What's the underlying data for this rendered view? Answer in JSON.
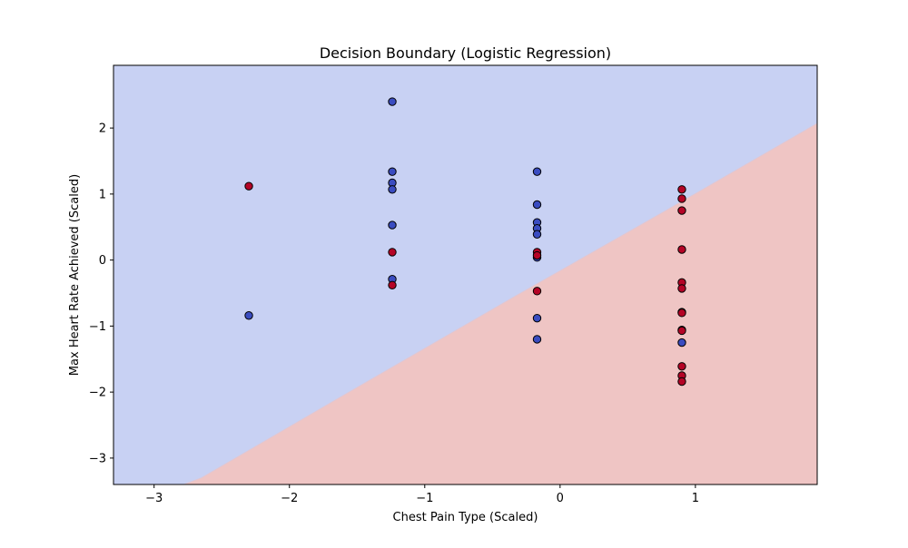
{
  "chart_data": {
    "type": "scatter",
    "title": "Decision Boundary (Logistic Regression)",
    "xlabel": "Chest Pain Type (Scaled)",
    "ylabel": "Max Heart Rate Achieved (Scaled)",
    "xlim": [
      -3.3,
      1.9
    ],
    "ylim": [
      -3.4,
      2.95
    ],
    "xticks": [
      -3,
      -2,
      -1,
      0,
      1
    ],
    "yticks": [
      -3,
      -2,
      -1,
      0,
      1,
      2
    ],
    "xtick_labels": [
      "−3",
      "−2",
      "−1",
      "0",
      "1"
    ],
    "ytick_labels": [
      "−3",
      "−2",
      "−1",
      "0",
      "1",
      "2"
    ],
    "grid": false,
    "legend": "none",
    "regions": [
      {
        "class": 0,
        "color": "#c8d1f3"
      },
      {
        "class": 1,
        "color": "#efc5c4"
      }
    ],
    "boundary": [
      {
        "x": -3.3,
        "y": -3.8
      },
      {
        "x": -2.65,
        "y": -3.3
      },
      {
        "x": -1.5,
        "y": -1.93
      },
      {
        "x": -0.35,
        "y": -0.57
      },
      {
        "x": 0.8,
        "y": 0.77
      },
      {
        "x": 1.9,
        "y": 2.07
      }
    ],
    "series": [
      {
        "class": 0,
        "color": "#3a4cc0",
        "points": [
          {
            "x": -2.3,
            "y": -0.84
          },
          {
            "x": -1.24,
            "y": 2.4
          },
          {
            "x": -1.24,
            "y": 1.34
          },
          {
            "x": -1.24,
            "y": 1.17
          },
          {
            "x": -1.24,
            "y": 1.07
          },
          {
            "x": -1.24,
            "y": 0.53
          },
          {
            "x": -1.24,
            "y": -0.29
          },
          {
            "x": -0.17,
            "y": 1.34
          },
          {
            "x": -0.17,
            "y": 0.84
          },
          {
            "x": -0.17,
            "y": 0.57
          },
          {
            "x": -0.17,
            "y": 0.48
          },
          {
            "x": -0.17,
            "y": 0.39
          },
          {
            "x": -0.17,
            "y": 0.04
          },
          {
            "x": -0.17,
            "y": -0.88
          },
          {
            "x": -0.17,
            "y": -1.2
          },
          {
            "x": 0.9,
            "y": -1.25
          }
        ]
      },
      {
        "class": 1,
        "color": "#b40426",
        "points": [
          {
            "x": -2.3,
            "y": 1.12
          },
          {
            "x": -1.24,
            "y": 0.12
          },
          {
            "x": -1.24,
            "y": -0.38
          },
          {
            "x": -0.17,
            "y": 0.12
          },
          {
            "x": -0.17,
            "y": 0.07
          },
          {
            "x": -0.17,
            "y": -0.47
          },
          {
            "x": 0.9,
            "y": 1.07
          },
          {
            "x": 0.9,
            "y": 0.93
          },
          {
            "x": 0.9,
            "y": 0.75
          },
          {
            "x": 0.9,
            "y": 0.16
          },
          {
            "x": 0.9,
            "y": -0.34
          },
          {
            "x": 0.9,
            "y": -0.43
          },
          {
            "x": 0.9,
            "y": -0.79
          },
          {
            "x": 0.9,
            "y": -0.8
          },
          {
            "x": 0.9,
            "y": -1.06
          },
          {
            "x": 0.9,
            "y": -1.07
          },
          {
            "x": 0.9,
            "y": -1.61
          },
          {
            "x": 0.9,
            "y": -1.75
          },
          {
            "x": 0.9,
            "y": -1.84
          }
        ]
      }
    ]
  }
}
